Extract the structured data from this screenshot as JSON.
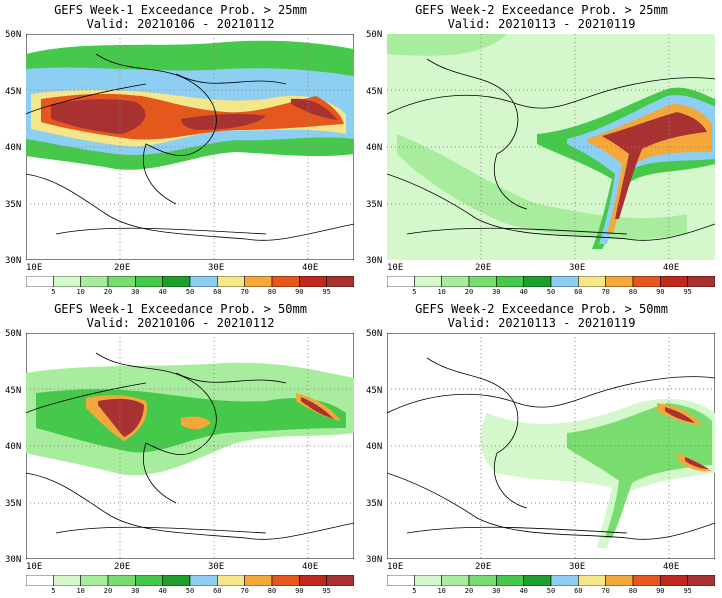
{
  "panels": [
    {
      "title": "GEFS Week-1 Exceedance Prob. > 25mm",
      "valid": "Valid: 20210106 - 20210112"
    },
    {
      "title": "GEFS Week-2 Exceedance Prob. > 25mm",
      "valid": "Valid: 20210113 - 20210119"
    },
    {
      "title": "GEFS Week-1 Exceedance Prob. > 50mm",
      "valid": "Valid: 20210106 - 20210112"
    },
    {
      "title": "GEFS Week-2 Exceedance Prob. > 50mm",
      "valid": "Valid: 20210113 - 20210119"
    }
  ],
  "lat_labels": [
    "50N",
    "45N",
    "40N",
    "35N",
    "30N"
  ],
  "lon_labels": [
    "10E",
    "20E",
    "30E",
    "40E"
  ],
  "colorbar": {
    "labels": [
      "5",
      "10",
      "20",
      "30",
      "40",
      "50",
      "60",
      "70",
      "80",
      "90",
      "95"
    ],
    "colors": [
      "#ffffff",
      "#d4f7cc",
      "#a8ec9e",
      "#78dc6e",
      "#46c84a",
      "#1e9e2a",
      "#8ccff2",
      "#f6e68a",
      "#f4a83c",
      "#e4581e",
      "#c02a1c",
      "#a83232"
    ]
  }
}
